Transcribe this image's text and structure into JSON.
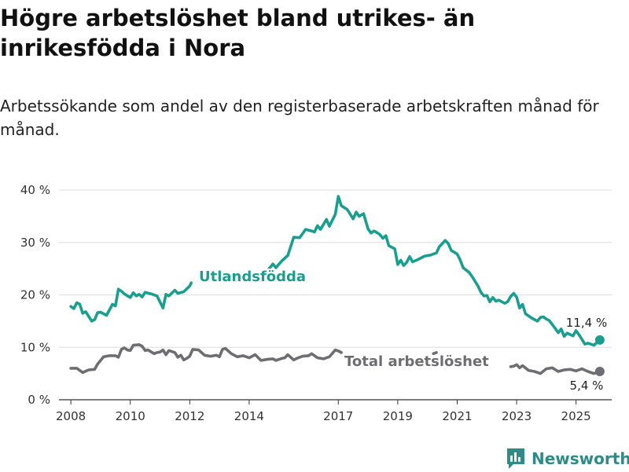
{
  "header": {
    "title": "Högre arbetslöshet bland utrikes- än inrikesfödda i Nora",
    "subtitle": "Arbetssökande som andel av den registerbaserade arbetskraften månad för månad."
  },
  "brand": {
    "name": "Newsworthy"
  },
  "colors": {
    "foreign": "#1a9e90",
    "total": "#6d6d72",
    "grid": "#dcdcdc",
    "brand": "#2e8b86"
  },
  "chart_data": {
    "type": "line",
    "title": "Högre arbetslöshet bland utrikes- än inrikesfödda i Nora",
    "ylim": [
      0,
      40
    ],
    "y_ticks": [
      0,
      10,
      20,
      30,
      40
    ],
    "y_tick_labels": [
      "0 %",
      "10 %",
      "20 %",
      "30 %",
      "40 %"
    ],
    "x_ticks": [
      2008,
      2010,
      2012,
      2014,
      2017,
      2019,
      2021,
      2023,
      2025
    ],
    "x_tick_labels": [
      "2008",
      "2010",
      "2012",
      "2014",
      "2017",
      "2019",
      "2021",
      "2023",
      "2025"
    ],
    "xlim": [
      2007.6,
      2026.2
    ],
    "series": [
      {
        "name": "Utlandsfödda",
        "label": "Utlandsfödda",
        "last_value_label": "11,4 %",
        "points": [
          [
            2008.0,
            17.8
          ],
          [
            2008.1,
            17.4
          ],
          [
            2008.2,
            18.5
          ],
          [
            2008.3,
            18.2
          ],
          [
            2008.4,
            16.5
          ],
          [
            2008.5,
            16.8
          ],
          [
            2008.6,
            15.9
          ],
          [
            2008.7,
            15.0
          ],
          [
            2008.8,
            15.3
          ],
          [
            2008.9,
            16.6
          ],
          [
            2009.0,
            16.7
          ],
          [
            2009.2,
            16.1
          ],
          [
            2009.4,
            18.2
          ],
          [
            2009.5,
            17.9
          ],
          [
            2009.6,
            21.1
          ],
          [
            2009.7,
            20.7
          ],
          [
            2009.8,
            20.2
          ],
          [
            2010.0,
            19.5
          ],
          [
            2010.1,
            20.4
          ],
          [
            2010.2,
            19.8
          ],
          [
            2010.3,
            20.1
          ],
          [
            2010.4,
            19.6
          ],
          [
            2010.5,
            20.5
          ],
          [
            2010.7,
            20.2
          ],
          [
            2010.9,
            19.8
          ],
          [
            2011.1,
            17.5
          ],
          [
            2011.2,
            20.1
          ],
          [
            2011.3,
            19.8
          ],
          [
            2011.5,
            20.9
          ],
          [
            2011.6,
            20.3
          ],
          [
            2011.8,
            20.6
          ],
          [
            2012.0,
            21.7
          ],
          [
            2012.05,
            22.3
          ]
        ],
        "points_2": [
          [
            2014.6,
            24.5
          ],
          [
            2014.8,
            25.9
          ],
          [
            2014.9,
            25.2
          ],
          [
            2015.1,
            26.5
          ],
          [
            2015.3,
            27.5
          ],
          [
            2015.5,
            31.0
          ],
          [
            2015.7,
            30.9
          ],
          [
            2015.9,
            32.5
          ],
          [
            2016.1,
            32.2
          ],
          [
            2016.2,
            32.0
          ],
          [
            2016.3,
            33.2
          ],
          [
            2016.4,
            32.5
          ],
          [
            2016.6,
            34.4
          ],
          [
            2016.7,
            33.1
          ],
          [
            2016.9,
            35.4
          ],
          [
            2017.0,
            38.8
          ],
          [
            2017.1,
            37.0
          ],
          [
            2017.3,
            36.3
          ],
          [
            2017.5,
            34.5
          ],
          [
            2017.6,
            35.8
          ],
          [
            2017.7,
            35.0
          ],
          [
            2017.85,
            35.5
          ],
          [
            2018.0,
            32.6
          ],
          [
            2018.1,
            31.8
          ],
          [
            2018.2,
            32.2
          ],
          [
            2018.3,
            31.9
          ],
          [
            2018.4,
            31.5
          ],
          [
            2018.5,
            30.8
          ],
          [
            2018.6,
            31.3
          ],
          [
            2018.7,
            29.4
          ],
          [
            2018.9,
            28.8
          ],
          [
            2019.0,
            25.8
          ],
          [
            2019.1,
            26.6
          ],
          [
            2019.2,
            25.6
          ],
          [
            2019.3,
            26.2
          ],
          [
            2019.4,
            27.3
          ],
          [
            2019.5,
            26.3
          ],
          [
            2019.7,
            26.8
          ],
          [
            2019.9,
            27.4
          ],
          [
            2020.1,
            27.6
          ],
          [
            2020.3,
            28.0
          ],
          [
            2020.4,
            29.2
          ],
          [
            2020.6,
            30.4
          ],
          [
            2020.7,
            29.8
          ],
          [
            2020.8,
            28.5
          ],
          [
            2021.0,
            27.8
          ],
          [
            2021.1,
            26.7
          ],
          [
            2021.2,
            25.2
          ],
          [
            2021.4,
            24.3
          ],
          [
            2021.5,
            23.5
          ],
          [
            2021.7,
            21.7
          ],
          [
            2021.8,
            20.5
          ],
          [
            2021.9,
            19.8
          ],
          [
            2022.0,
            19.9
          ],
          [
            2022.1,
            18.7
          ],
          [
            2022.2,
            19.5
          ],
          [
            2022.3,
            18.8
          ],
          [
            2022.4,
            19.0
          ],
          [
            2022.6,
            18.4
          ],
          [
            2022.7,
            18.7
          ],
          [
            2022.8,
            19.7
          ],
          [
            2022.9,
            20.3
          ],
          [
            2023.0,
            19.6
          ],
          [
            2023.1,
            17.5
          ],
          [
            2023.2,
            18.2
          ],
          [
            2023.3,
            16.4
          ],
          [
            2023.5,
            15.6
          ],
          [
            2023.7,
            15.0
          ],
          [
            2023.8,
            15.7
          ],
          [
            2023.9,
            15.8
          ],
          [
            2024.0,
            15.4
          ],
          [
            2024.1,
            15.1
          ],
          [
            2024.3,
            13.6
          ],
          [
            2024.4,
            12.8
          ],
          [
            2024.5,
            13.5
          ],
          [
            2024.6,
            12.1
          ],
          [
            2024.7,
            12.7
          ],
          [
            2024.9,
            12.2
          ],
          [
            2025.0,
            13.2
          ],
          [
            2025.1,
            12.4
          ],
          [
            2025.3,
            10.6
          ],
          [
            2025.4,
            10.8
          ],
          [
            2025.6,
            10.4
          ],
          [
            2025.8,
            11.4
          ]
        ]
      },
      {
        "name": "Total arbetslöshet",
        "label": "Total arbetslöshet",
        "last_value_label": "5,4 %",
        "points": [
          [
            2008.0,
            6.0
          ],
          [
            2008.2,
            6.0
          ],
          [
            2008.4,
            5.2
          ],
          [
            2008.6,
            5.7
          ],
          [
            2008.8,
            5.8
          ],
          [
            2008.9,
            6.8
          ],
          [
            2009.1,
            8.2
          ],
          [
            2009.3,
            8.4
          ],
          [
            2009.5,
            8.4
          ],
          [
            2009.6,
            8.1
          ],
          [
            2009.7,
            9.6
          ],
          [
            2009.8,
            9.9
          ],
          [
            2009.9,
            9.5
          ],
          [
            2010.0,
            9.4
          ],
          [
            2010.1,
            10.4
          ],
          [
            2010.3,
            10.5
          ],
          [
            2010.4,
            10.2
          ],
          [
            2010.5,
            9.4
          ],
          [
            2010.6,
            9.5
          ],
          [
            2010.8,
            8.8
          ],
          [
            2010.9,
            9.0
          ],
          [
            2011.0,
            9.1
          ],
          [
            2011.1,
            9.5
          ],
          [
            2011.2,
            8.6
          ],
          [
            2011.3,
            9.4
          ],
          [
            2011.5,
            9.0
          ],
          [
            2011.6,
            8.1
          ],
          [
            2011.7,
            8.5
          ],
          [
            2011.8,
            7.6
          ],
          [
            2011.9,
            7.9
          ],
          [
            2012.0,
            8.3
          ],
          [
            2012.1,
            9.6
          ],
          [
            2012.3,
            9.5
          ],
          [
            2012.5,
            8.5
          ],
          [
            2012.7,
            8.3
          ],
          [
            2012.9,
            8.5
          ],
          [
            2013.0,
            8.2
          ],
          [
            2013.1,
            9.6
          ],
          [
            2013.2,
            9.8
          ],
          [
            2013.4,
            8.8
          ],
          [
            2013.6,
            8.2
          ],
          [
            2013.8,
            8.4
          ],
          [
            2014.0,
            8.0
          ],
          [
            2014.2,
            8.6
          ],
          [
            2014.4,
            7.5
          ],
          [
            2014.6,
            7.7
          ],
          [
            2014.8,
            7.8
          ],
          [
            2014.9,
            7.5
          ],
          [
            2015.1,
            7.9
          ],
          [
            2015.2,
            8.0
          ],
          [
            2015.3,
            8.6
          ],
          [
            2015.5,
            7.6
          ],
          [
            2015.6,
            7.9
          ],
          [
            2015.8,
            8.3
          ],
          [
            2016.0,
            8.4
          ],
          [
            2016.1,
            8.8
          ],
          [
            2016.3,
            8.0
          ],
          [
            2016.5,
            7.8
          ],
          [
            2016.7,
            8.2
          ],
          [
            2016.9,
            9.5
          ],
          [
            2017.0,
            9.3
          ],
          [
            2017.1,
            9.0
          ]
        ],
        "points_2": [
          [
            2020.2,
            8.8
          ],
          [
            2020.3,
            9.0
          ]
        ],
        "points_3": [
          [
            2022.8,
            6.3
          ],
          [
            2022.9,
            6.4
          ],
          [
            2023.0,
            6.7
          ],
          [
            2023.1,
            6.1
          ],
          [
            2023.2,
            6.5
          ],
          [
            2023.4,
            5.6
          ],
          [
            2023.6,
            5.4
          ],
          [
            2023.8,
            5.0
          ],
          [
            2024.0,
            5.9
          ],
          [
            2024.2,
            6.1
          ],
          [
            2024.4,
            5.4
          ],
          [
            2024.6,
            5.7
          ],
          [
            2024.8,
            5.8
          ],
          [
            2025.0,
            5.5
          ],
          [
            2025.2,
            5.9
          ],
          [
            2025.4,
            5.4
          ],
          [
            2025.6,
            5.0
          ],
          [
            2025.8,
            5.4
          ]
        ]
      }
    ]
  }
}
